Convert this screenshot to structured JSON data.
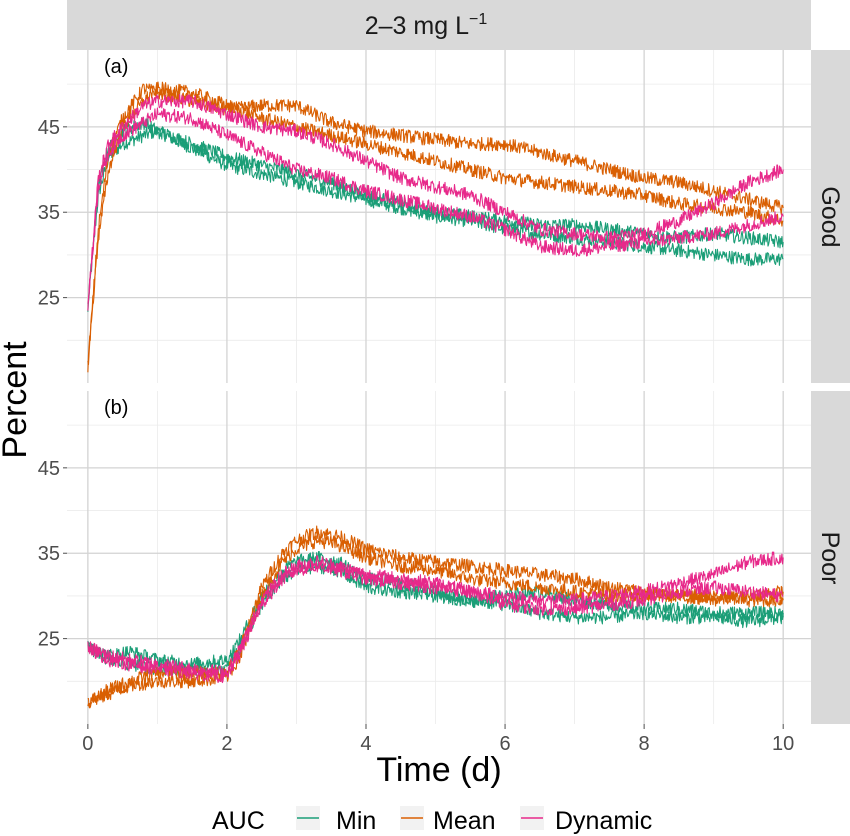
{
  "chart_data": {
    "type": "line",
    "facet_column": "2–3  mg  L",
    "facet_column_superscript": "−1",
    "xlabel": "Time (d)",
    "ylabel": "Percent",
    "xlim": [
      -0.3,
      10.4
    ],
    "ylim": [
      15,
      54
    ],
    "x_ticks": [
      0,
      2,
      4,
      6,
      8,
      10
    ],
    "y_ticks": [
      25,
      35,
      45
    ],
    "legend": {
      "title": "AUC",
      "position": "bottom",
      "entries": [
        "Min",
        "Mean",
        "Dynamic"
      ]
    },
    "colors": {
      "Min": "#1b9e77",
      "Mean": "#d95f02",
      "Dynamic": "#e7298a"
    },
    "panels": [
      {
        "label": "(a)",
        "row_strip": "Good",
        "series": [
          {
            "name": "Min",
            "x": [
              0,
              0.15,
              0.3,
              0.5,
              0.8,
              1.0,
              1.5,
              2.0,
              2.5,
              3.0,
              3.5,
              4.0,
              4.5,
              5.0,
              5.5,
              6.0,
              6.5,
              7.0,
              7.5,
              8.0,
              8.5,
              9.0,
              9.5,
              10.0
            ],
            "y": [
              24,
              37,
              41.5,
              43,
              44,
              44.5,
              42.5,
              40.5,
              39.5,
              38.5,
              37.5,
              36.5,
              35.5,
              34.5,
              34,
              33,
              32.5,
              32,
              31.5,
              31,
              30.5,
              30,
              29.5,
              29.5
            ]
          },
          {
            "name": "Min",
            "x": [
              0,
              0.15,
              0.3,
              0.5,
              0.8,
              1.0,
              1.5,
              2.0,
              2.5,
              3.0,
              3.5,
              4.0,
              4.5,
              5.0,
              5.5,
              6.0,
              6.5,
              7.0,
              7.5,
              8.0,
              8.5,
              9.0,
              9.5,
              10.0
            ],
            "y": [
              24,
              38,
              42.5,
              44.5,
              45.5,
              44.5,
              43,
              41.5,
              40.5,
              39.5,
              38.5,
              37,
              36,
              35,
              34.5,
              34,
              33.5,
              33.5,
              33,
              32.5,
              32,
              32.5,
              32,
              31.5
            ]
          },
          {
            "name": "Mean",
            "x": [
              0,
              0.15,
              0.3,
              0.5,
              0.8,
              1.0,
              1.5,
              2.0,
              2.5,
              3.0,
              3.5,
              4.0,
              4.5,
              5.0,
              5.5,
              6.0,
              6.5,
              7.0,
              7.5,
              8.0,
              8.5,
              9.0,
              9.5,
              10.0
            ],
            "y": [
              17,
              33,
              42,
              46,
              49.5,
              49,
              48,
              47,
              47.5,
              47.5,
              45.5,
              44.5,
              44,
              43.5,
              43,
              43,
              42,
              41,
              40,
              39,
              38.5,
              37.5,
              36.5,
              35.5
            ]
          },
          {
            "name": "Mean",
            "x": [
              0,
              0.15,
              0.3,
              0.5,
              0.8,
              1.0,
              1.5,
              2.0,
              2.5,
              3.0,
              3.5,
              4.0,
              4.5,
              5.0,
              5.5,
              6.0,
              6.5,
              7.0,
              7.5,
              8.0,
              8.5,
              9.0,
              9.5,
              10.0
            ],
            "y": [
              17,
              32,
              40,
              45,
              48,
              49.5,
              49,
              47.5,
              46,
              45,
              44,
              43,
              42,
              41,
              40,
              39,
              38.5,
              38,
              37.5,
              37,
              36,
              35.5,
              35,
              34
            ]
          },
          {
            "name": "Dynamic",
            "x": [
              0,
              0.15,
              0.3,
              0.5,
              0.8,
              1.0,
              1.5,
              2.0,
              2.5,
              3.0,
              3.5,
              4.0,
              4.5,
              5.0,
              5.5,
              6.0,
              6.5,
              7.0,
              7.5,
              8.0,
              8.5,
              9.0,
              9.5,
              10.0
            ],
            "y": [
              24,
              39,
              43,
              45,
              47.5,
              48,
              48,
              46.5,
              45,
              44.5,
              43,
              41,
              39,
              38,
              37,
              35,
              33,
              32.5,
              32,
              32.5,
              34,
              36,
              38.5,
              40
            ]
          },
          {
            "name": "Dynamic",
            "x": [
              0,
              0.15,
              0.3,
              0.5,
              0.8,
              1.0,
              1.5,
              2.0,
              2.5,
              3.0,
              3.5,
              4.0,
              4.5,
              5.0,
              5.5,
              6.0,
              6.5,
              7.0,
              7.5,
              8.0,
              8.5,
              9.0,
              9.5,
              10.0
            ],
            "y": [
              24,
              38,
              42,
              44,
              45.5,
              46.5,
              46,
              44,
              42,
              40,
              39,
              37.5,
              36.5,
              35.5,
              34.5,
              33,
              31,
              30.5,
              31,
              31.5,
              32,
              32.5,
              33.5,
              34.5
            ]
          }
        ]
      },
      {
        "label": "(b)",
        "row_strip": "Poor",
        "series": [
          {
            "name": "Min",
            "x": [
              0,
              0.3,
              0.6,
              1.0,
              1.5,
              2.0,
              2.2,
              2.5,
              2.8,
              3.0,
              3.3,
              3.6,
              4.0,
              4.5,
              5.0,
              5.5,
              6.0,
              6.5,
              7.0,
              7.5,
              8.0,
              8.5,
              9.0,
              9.5,
              10.0
            ],
            "y": [
              24,
              23,
              23.5,
              22.5,
              22,
              22.5,
              25,
              30,
              33,
              34,
              34.5,
              34,
              32,
              31.5,
              30.5,
              29.5,
              29,
              28,
              27.5,
              27.5,
              28,
              27.5,
              27.5,
              27,
              27.5
            ]
          },
          {
            "name": "Min",
            "x": [
              0,
              0.3,
              0.6,
              1.0,
              1.5,
              2.0,
              2.2,
              2.5,
              2.8,
              3.0,
              3.3,
              3.6,
              4.0,
              4.5,
              5.0,
              5.5,
              6.0,
              6.5,
              7.0,
              7.5,
              8.0,
              8.5,
              9.0,
              9.5,
              10.0
            ],
            "y": [
              24,
              22.5,
              22,
              21.5,
              21.5,
              21.5,
              24,
              29,
              32,
              33,
              33.5,
              33,
              31,
              30.5,
              30,
              29.5,
              30,
              30.5,
              29.5,
              29,
              28.5,
              28.5,
              28,
              28,
              28
            ]
          },
          {
            "name": "Mean",
            "x": [
              0,
              0.3,
              0.6,
              1.0,
              1.5,
              2.0,
              2.2,
              2.5,
              2.8,
              3.0,
              3.3,
              3.6,
              4.0,
              4.5,
              5.0,
              5.5,
              6.0,
              6.5,
              7.0,
              7.5,
              8.0,
              8.5,
              9.0,
              9.5,
              10.0
            ],
            "y": [
              17.5,
              19,
              20,
              21,
              21,
              21,
              24,
              31,
              35,
              36.5,
              37.5,
              37,
              35.5,
              34.5,
              34,
              33.5,
              33,
              32.5,
              32,
              31,
              30.5,
              30,
              30,
              29.5,
              29.5
            ]
          },
          {
            "name": "Mean",
            "x": [
              0,
              0.3,
              0.6,
              1.0,
              1.5,
              2.0,
              2.2,
              2.5,
              2.8,
              3.0,
              3.3,
              3.6,
              4.0,
              4.5,
              5.0,
              5.5,
              6.0,
              6.5,
              7.0,
              7.5,
              8.0,
              8.5,
              9.0,
              9.5,
              10.0
            ],
            "y": [
              17.5,
              18.5,
              19.5,
              20,
              20,
              20.5,
              23,
              30,
              34,
              35.5,
              36.5,
              36,
              34.5,
              33.5,
              33,
              32,
              31.5,
              31,
              30.5,
              30,
              30,
              30,
              29.5,
              30,
              30.5
            ]
          },
          {
            "name": "Dynamic",
            "x": [
              0,
              0.3,
              0.6,
              1.0,
              1.5,
              2.0,
              2.2,
              2.5,
              2.8,
              3.0,
              3.3,
              3.6,
              4.0,
              4.5,
              5.0,
              5.5,
              6.0,
              6.5,
              7.0,
              7.5,
              8.0,
              8.5,
              9.0,
              9.5,
              10.0
            ],
            "y": [
              24,
              23,
              22.5,
              22,
              21.5,
              21,
              24,
              29.5,
              32.5,
              33.5,
              34,
              33.5,
              32.5,
              32,
              31.5,
              30.5,
              30,
              29.5,
              29.5,
              30,
              30.5,
              31.5,
              32.5,
              34,
              34.5
            ]
          },
          {
            "name": "Dynamic",
            "x": [
              0,
              0.3,
              0.6,
              1.0,
              1.5,
              2.0,
              2.2,
              2.5,
              2.8,
              3.0,
              3.3,
              3.6,
              4.0,
              4.5,
              5.0,
              5.5,
              6.0,
              6.5,
              7.0,
              7.5,
              8.0,
              8.5,
              9.0,
              9.5,
              10.0
            ],
            "y": [
              24,
              22.5,
              22,
              21.5,
              21,
              20.5,
              23.5,
              29,
              32,
              33,
              33.5,
              33,
              32,
              31.5,
              31,
              30.5,
              29,
              28.5,
              28.5,
              29,
              29.5,
              30.5,
              31,
              30.5,
              30
            ]
          }
        ]
      }
    ]
  }
}
